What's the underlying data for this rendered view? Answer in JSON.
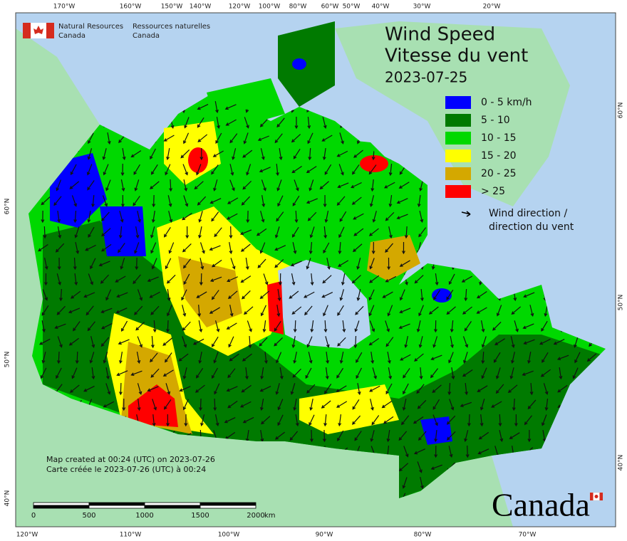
{
  "agency": {
    "english": [
      "Natural Resources",
      "Canada"
    ],
    "french": [
      "Ressources naturelles",
      "Canada"
    ]
  },
  "title": [
    "Wind Speed",
    "Vitesse du vent"
  ],
  "date": "2023-07-25",
  "legend": {
    "items": [
      {
        "label": "0 - 5 km/h",
        "color": "#0000ff"
      },
      {
        "label": "5 - 10",
        "color": "#007a00"
      },
      {
        "label": "10 - 15",
        "color": "#00d800"
      },
      {
        "label": "15 - 20",
        "color": "#ffff00"
      },
      {
        "label": "20 - 25",
        "color": "#d4a800"
      },
      {
        "label": "> 25",
        "color": "#ff0000"
      }
    ],
    "arrow_label": [
      "Wind direction /",
      "direction du vent"
    ]
  },
  "footer": [
    "Map created at 00:24 (UTC) on 2023-07-26",
    "Carte créée le 2023-07-26 (UTC) à 00:24"
  ],
  "graticule": {
    "top": [
      "170°W",
      "160°W",
      "150°W",
      "140°W",
      "120°W",
      "100°W",
      "80°W",
      "60°W",
      "50°W",
      "40°W",
      "30°W",
      "20°W"
    ],
    "bottom": [
      "120°W",
      "110°W",
      "100°W",
      "90°W",
      "80°W",
      "70°W"
    ],
    "left": [
      "60°N",
      "50°N",
      "40°N"
    ],
    "right": [
      "60°N",
      "50°N",
      "40°N"
    ]
  },
  "scale_bar": {
    "ticks": [
      0,
      500,
      1000,
      1500,
      2000
    ],
    "unit": "km"
  },
  "wordmark": "Canada"
}
